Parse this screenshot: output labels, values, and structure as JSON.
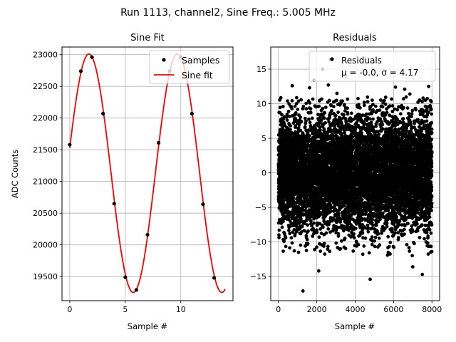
{
  "figure": {
    "suptitle": "Run 1113, channel2, Sine Freq.: 5.005 MHz"
  },
  "chart_data": [
    {
      "type": "scatter+line",
      "title": "Sine Fit",
      "xlabel": "Sample #",
      "ylabel": "ADC Counts",
      "xlim": [
        -0.7,
        14.7
      ],
      "ylim": [
        19120,
        23120
      ],
      "xticks": [
        0,
        5,
        10
      ],
      "yticks": [
        19500,
        20000,
        20500,
        21000,
        21500,
        22000,
        22500,
        23000
      ],
      "grid": true,
      "legend_position": "top-right",
      "samples": {
        "name": "Samples",
        "color": "#000000",
        "x": [
          0,
          1,
          2,
          3,
          4,
          5,
          6,
          7,
          8,
          9,
          10,
          11,
          12,
          13
        ],
        "y": [
          21580,
          22740,
          22960,
          22070,
          20650,
          19490,
          19290,
          20160,
          21610,
          22740,
          22960,
          22070,
          20640,
          19480
        ]
      },
      "fit": {
        "name": "Sine fit",
        "color": "#ff0000",
        "offset": 21130,
        "amplitude": 1880,
        "period": 7.98,
        "phase_x": -0.27,
        "x_range": [
          0,
          14
        ]
      }
    },
    {
      "type": "scatter",
      "title": "Residuals",
      "xlabel": "Sample #",
      "ylabel": "",
      "xlim": [
        -400,
        8400
      ],
      "ylim": [
        -18.5,
        18.2
      ],
      "xticks": [
        0,
        2000,
        4000,
        6000,
        8000
      ],
      "yticks": [
        -15,
        -10,
        -5,
        0,
        5,
        10,
        15
      ],
      "grid": true,
      "legend_position": "top-right",
      "series": [
        {
          "name": "Residuals",
          "color": "#000000",
          "n_points": 8000,
          "mean": -0.0,
          "sigma": 4.17,
          "outliers": [
            {
              "x": 1280,
              "y": -17.1
            },
            {
              "x": 4780,
              "y": -15.4
            },
            {
              "x": 7500,
              "y": -14.7
            },
            {
              "x": 2100,
              "y": -14.2
            },
            {
              "x": 7000,
              "y": -13.6
            },
            {
              "x": 2600,
              "y": 12.7
            },
            {
              "x": 7830,
              "y": 12.5
            },
            {
              "x": 1620,
              "y": 12.3
            },
            {
              "x": 6100,
              "y": 12.4
            },
            {
              "x": 720,
              "y": 12.6
            },
            {
              "x": 6580,
              "y": 12.1
            },
            {
              "x": 3050,
              "y": 11.5
            },
            {
              "x": 6850,
              "y": 11.4
            },
            {
              "x": 1850,
              "y": 13.4
            },
            {
              "x": 2300,
              "y": 15.0
            },
            {
              "x": 2700,
              "y": 16.4
            }
          ]
        }
      ],
      "legend_stats": "μ = -0.0, σ = 4.17"
    }
  ]
}
